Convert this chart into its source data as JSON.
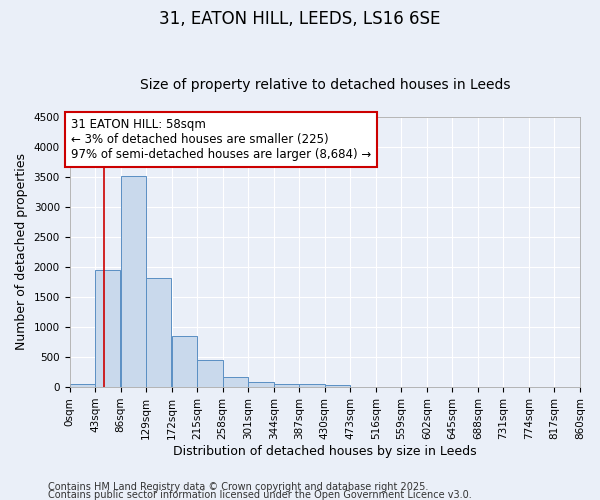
{
  "title1": "31, EATON HILL, LEEDS, LS16 6SE",
  "title2": "Size of property relative to detached houses in Leeds",
  "xlabel": "Distribution of detached houses by size in Leeds",
  "ylabel": "Number of detached properties",
  "bar_values": [
    50,
    1950,
    3520,
    1820,
    850,
    450,
    160,
    90,
    55,
    45,
    40,
    0,
    0,
    0,
    0,
    0,
    0,
    0,
    0,
    0
  ],
  "bin_edges": [
    0,
    43,
    86,
    129,
    172,
    215,
    258,
    301,
    344,
    387,
    430,
    473,
    516,
    559,
    602,
    645,
    688,
    731,
    774,
    817,
    860
  ],
  "xtick_labels": [
    "0sqm",
    "43sqm",
    "86sqm",
    "129sqm",
    "172sqm",
    "215sqm",
    "258sqm",
    "301sqm",
    "344sqm",
    "387sqm",
    "430sqm",
    "473sqm",
    "516sqm",
    "559sqm",
    "602sqm",
    "645sqm",
    "688sqm",
    "731sqm",
    "774sqm",
    "817sqm",
    "860sqm"
  ],
  "ylim": [
    0,
    4500
  ],
  "yticks": [
    0,
    500,
    1000,
    1500,
    2000,
    2500,
    3000,
    3500,
    4000,
    4500
  ],
  "bar_color": "#c9d9ec",
  "bar_edge_color": "#5a8fc3",
  "bg_color": "#eaeff8",
  "grid_color": "#ffffff",
  "vline_x": 58,
  "vline_color": "#cc0000",
  "annotation_text": "31 EATON HILL: 58sqm\n← 3% of detached houses are smaller (225)\n97% of semi-detached houses are larger (8,684) →",
  "annotation_box_color": "#cc0000",
  "footer1": "Contains HM Land Registry data © Crown copyright and database right 2025.",
  "footer2": "Contains public sector information licensed under the Open Government Licence v3.0.",
  "title1_fontsize": 12,
  "title2_fontsize": 10,
  "xlabel_fontsize": 9,
  "ylabel_fontsize": 9,
  "tick_fontsize": 7.5,
  "annotation_fontsize": 8.5,
  "footer_fontsize": 7
}
